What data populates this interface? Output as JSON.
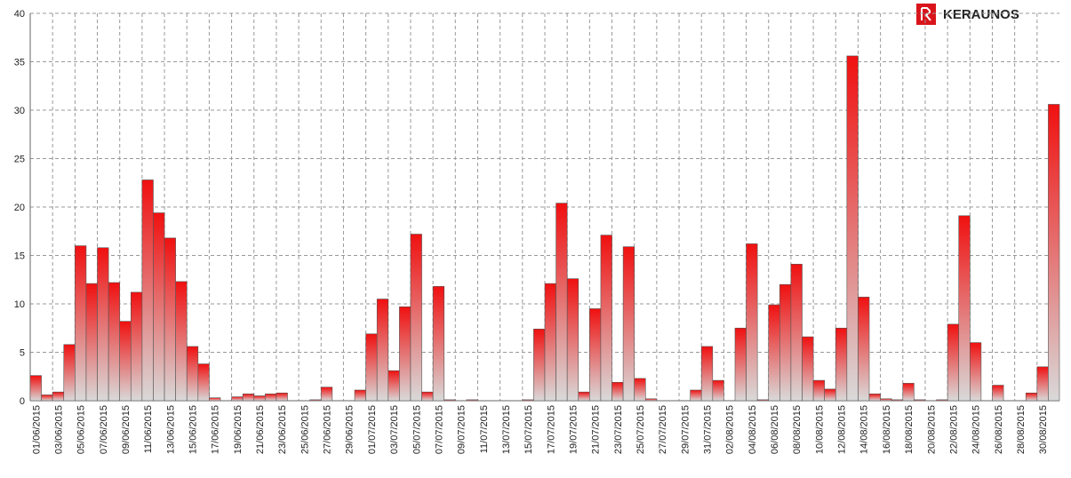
{
  "logo": "KERAUNOS",
  "chart_data": {
    "type": "bar",
    "categories": [
      "01/06/2015",
      null,
      "03/06/2015",
      null,
      "05/06/2015",
      null,
      "07/06/2015",
      null,
      "09/06/2015",
      null,
      "11/06/2015",
      null,
      "13/06/2015",
      null,
      "15/06/2015",
      null,
      "17/06/2015",
      null,
      "19/06/2015",
      null,
      "21/06/2015",
      null,
      "23/06/2015",
      null,
      "25/06/2015",
      null,
      "27/06/2015",
      null,
      "29/06/2015",
      null,
      "01/07/2015",
      null,
      "03/07/2015",
      null,
      "05/07/2015",
      null,
      "07/07/2015",
      null,
      "09/07/2015",
      null,
      "11/07/2015",
      null,
      "13/07/2015",
      null,
      "15/07/2015",
      null,
      "17/07/2015",
      null,
      "19/07/2015",
      null,
      "21/07/2015",
      null,
      "23/07/2015",
      null,
      "25/07/2015",
      null,
      "27/07/2015",
      null,
      "29/07/2015",
      null,
      "31/07/2015",
      null,
      "02/08/2015",
      null,
      "04/08/2015",
      null,
      "06/08/2015",
      null,
      "08/08/2015",
      null,
      "10/08/2015",
      null,
      "12/08/2015",
      null,
      "14/08/2015",
      null,
      "16/08/2015",
      null,
      "18/08/2015",
      null,
      "20/08/2015",
      null,
      "22/08/2015",
      null,
      "24/08/2015",
      null,
      "26/08/2015",
      null,
      "28/08/2015",
      null,
      "30/08/2015",
      null
    ],
    "values": [
      2.6,
      0.6,
      0.9,
      5.8,
      16,
      12.1,
      15.8,
      12.2,
      8.2,
      11.2,
      22.8,
      19.4,
      16.8,
      12.3,
      5.6,
      3.8,
      0.3,
      0,
      0.4,
      0.7,
      0.5,
      0.7,
      0.8,
      0,
      0,
      0.1,
      1.4,
      0,
      0,
      1.1,
      6.9,
      10.5,
      3.1,
      9.7,
      17.2,
      0.9,
      11.8,
      0.1,
      0,
      0.1,
      0,
      0,
      0,
      0,
      0.1,
      7.4,
      12.1,
      20.4,
      12.6,
      0.9,
      9.5,
      17.1,
      1.9,
      15.9,
      2.3,
      0.2,
      0,
      0,
      0,
      1.1,
      5.6,
      2.1,
      0,
      7.5,
      16.2,
      0.1,
      9.9,
      12,
      14.1,
      6.6,
      2.1,
      1.2,
      7.5,
      35.6,
      10.7,
      0.7,
      0.2,
      0.1,
      1.8,
      0.1,
      0,
      0.1,
      7.9,
      19.1,
      6,
      0,
      1.6,
      0,
      0,
      0.8,
      3.5,
      30.6
    ],
    "color": "#f01010",
    "color_bottom": "#d9d9d9",
    "ylim": [
      0,
      40
    ],
    "yticks": [
      0,
      5,
      10,
      15,
      20,
      25,
      30,
      35,
      40
    ],
    "grid": true
  }
}
